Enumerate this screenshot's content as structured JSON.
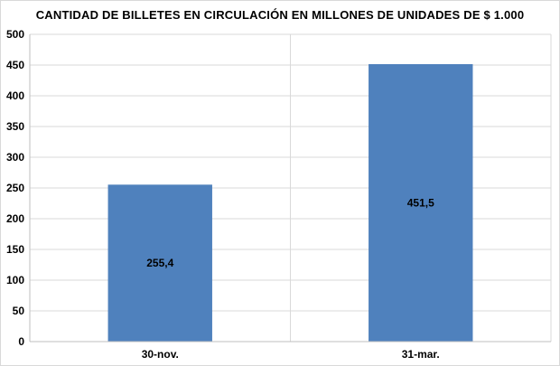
{
  "chart_data": {
    "type": "bar",
    "title": "CANTIDAD  DE BILLETES  EN CIRCULACIÓN  EN MILLONES  DE UNIDADES  DE $ 1.000",
    "categories": [
      "30-nov.",
      "31-mar."
    ],
    "values": [
      255.4,
      451.5
    ],
    "data_labels": [
      "255,4",
      "451,5"
    ],
    "ylim": [
      0,
      500
    ],
    "yticks": [
      0,
      50,
      100,
      150,
      200,
      250,
      300,
      350,
      400,
      450,
      500
    ],
    "grid": true,
    "legend": "none",
    "bar_color": "#4f81bd",
    "grid_color": "#d9d9d9"
  }
}
